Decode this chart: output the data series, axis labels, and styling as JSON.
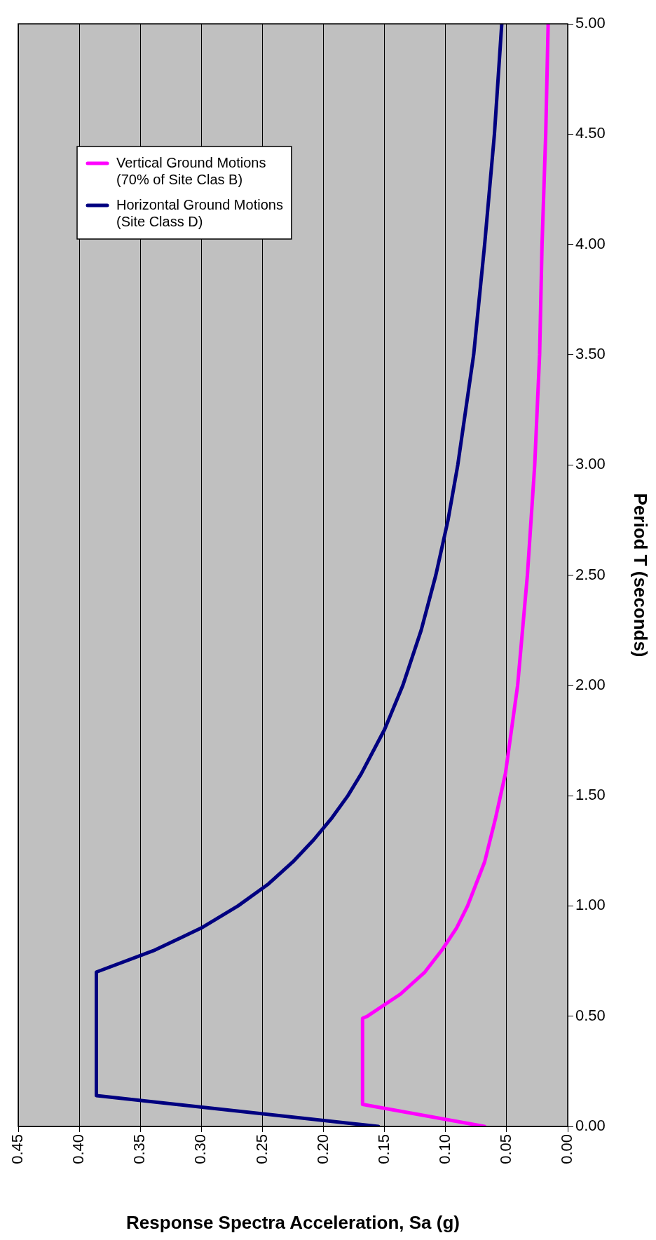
{
  "chart_data": {
    "type": "line",
    "xlabel": "Response Spectra Acceleration, Sa (g)",
    "ylabel": "Period T (seconds)",
    "xlim": [
      0.45,
      0
    ],
    "xticks": [
      {
        "value": 0.45,
        "label": "0.45"
      },
      {
        "value": 0.4,
        "label": "0.40"
      },
      {
        "value": 0.35,
        "label": "0.35"
      },
      {
        "value": 0.3,
        "label": "0.30"
      },
      {
        "value": 0.25,
        "label": "0.25"
      },
      {
        "value": 0.2,
        "label": "0.20"
      },
      {
        "value": 0.15,
        "label": "0.15"
      },
      {
        "value": 0.1,
        "label": "0.10"
      },
      {
        "value": 0.05,
        "label": "0.05"
      },
      {
        "value": 0,
        "label": "0.00"
      }
    ],
    "ylim": [
      0,
      5
    ],
    "yticks": [
      {
        "value": 0,
        "label": "0.00"
      },
      {
        "value": 0.5,
        "label": "0.50"
      },
      {
        "value": 1,
        "label": "1.00"
      },
      {
        "value": 1.5,
        "label": "1.50"
      },
      {
        "value": 2,
        "label": "2.00"
      },
      {
        "value": 2.5,
        "label": "2.50"
      },
      {
        "value": 3,
        "label": "3.00"
      },
      {
        "value": 3.5,
        "label": "3.50"
      },
      {
        "value": 4,
        "label": "4.00"
      },
      {
        "value": 4.5,
        "label": "4.50"
      },
      {
        "value": 5,
        "label": "5.00"
      }
    ],
    "grid": "x",
    "legend": "top left",
    "marker": "none",
    "line_style": "solid",
    "series": [
      {
        "name": "Vertical Ground Motions (70% of Site Clas B)",
        "color": "#ff00ff",
        "x": [
          0.068,
          0.168,
          0.168,
          0.164,
          0.137,
          0.117,
          0.103,
          0.091,
          0.082,
          0.068,
          0.059,
          0.051,
          0.046,
          0.041,
          0.033,
          0.027,
          0.023,
          0.021,
          0.018,
          0.016
        ],
        "values": [
          0,
          0.1,
          0.49,
          0.5,
          0.6,
          0.7,
          0.8,
          0.9,
          1.0,
          1.2,
          1.4,
          1.6,
          1.8,
          2.0,
          2.5,
          3.0,
          3.5,
          4.0,
          4.5,
          5.0
        ]
      },
      {
        "name": "Horizontal Ground Motions (Site Class D)",
        "color": "#000080",
        "x": [
          0.155,
          0.386,
          0.386,
          0.338,
          0.3,
          0.27,
          0.245,
          0.225,
          0.208,
          0.193,
          0.18,
          0.169,
          0.15,
          0.135,
          0.12,
          0.108,
          0.098,
          0.09,
          0.077,
          0.068,
          0.06,
          0.054
        ],
        "values": [
          0,
          0.14,
          0.7,
          0.8,
          0.9,
          1.0,
          1.1,
          1.2,
          1.3,
          1.4,
          1.5,
          1.6,
          1.8,
          2.0,
          2.25,
          2.5,
          2.75,
          3.0,
          3.5,
          4.0,
          4.5,
          5.0
        ]
      }
    ]
  }
}
